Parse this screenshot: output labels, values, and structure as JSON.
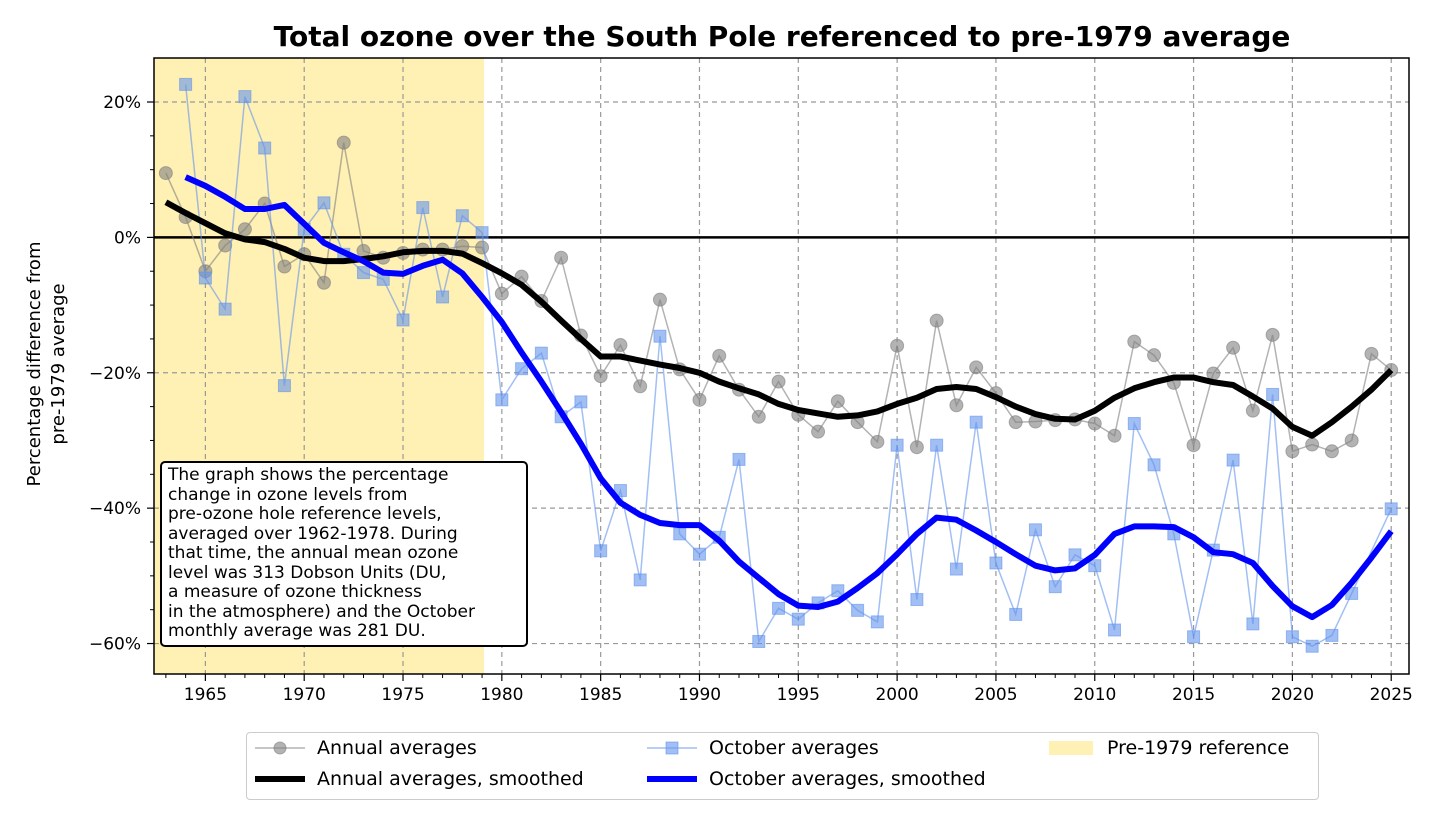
{
  "chart_data": {
    "type": "line",
    "title": "Total ozone over the South Pole referenced to pre-1979 average",
    "xlabel": "",
    "ylabel": "Percentage difference from\npre-1979 average",
    "xlim": [
      1962.4,
      2025.9
    ],
    "ylim": [
      -64.5,
      26.5
    ],
    "x_ticks": [
      1965,
      1970,
      1975,
      1980,
      1985,
      1990,
      1995,
      2000,
      2005,
      2010,
      2015,
      2020,
      2025
    ],
    "y_ticks": [
      20,
      0,
      -20,
      -40,
      -60
    ],
    "y_tick_labels": [
      "20%",
      "0%",
      "−20%",
      "−40%",
      "−60%"
    ],
    "grid": true,
    "reference_span": {
      "label": "Pre-1979 reference",
      "from": 1962.4,
      "to": 1979.1,
      "color": "#fff0b3"
    },
    "series": [
      {
        "name": "Annual averages",
        "style": "circle-thin",
        "color": "#808080",
        "x": [
          1963,
          1964,
          1965,
          1966,
          1967,
          1968,
          1969,
          1970,
          1971,
          1972,
          1973,
          1974,
          1975,
          1976,
          1977,
          1978,
          1979,
          1980,
          1981,
          1982,
          1983,
          1984,
          1985,
          1986,
          1987,
          1988,
          1989,
          1990,
          1991,
          1992,
          1993,
          1994,
          1995,
          1996,
          1997,
          1998,
          1999,
          2000,
          2001,
          2002,
          2003,
          2004,
          2005,
          2006,
          2007,
          2008,
          2009,
          2010,
          2011,
          2012,
          2013,
          2014,
          2015,
          2016,
          2017,
          2018,
          2019,
          2020,
          2021,
          2022,
          2023,
          2024,
          2025
        ],
        "values": [
          9.5,
          3,
          -5,
          -1.2,
          1.2,
          5,
          -4.3,
          -2.5,
          -6.7,
          14,
          -2,
          -3,
          -2.3,
          -1.8,
          -1.8,
          -1.3,
          -1.5,
          -8.3,
          -5.8,
          -9.4,
          -3,
          -14.5,
          -20.5,
          -15.9,
          -22,
          -9.2,
          -19.5,
          -24,
          -17.5,
          -22.5,
          -26.5,
          -21.3,
          -26.2,
          -28.7,
          -24.2,
          -27.3,
          -30.2,
          -16,
          -31,
          -12.3,
          -24.8,
          -19.2,
          -23,
          -27.3,
          -27.2,
          -27,
          -26.9,
          -27.5,
          -29.3,
          -15.4,
          -17.4,
          -21.5,
          -30.7,
          -20.1,
          -16.3,
          -25.6,
          -14.4,
          -31.6,
          -30.6,
          -31.6,
          -30,
          -17.2,
          -19.6
        ]
      },
      {
        "name": "October averages",
        "style": "square-thin",
        "color": "#6495ed",
        "x": [
          1964,
          1965,
          1966,
          1967,
          1968,
          1969,
          1970,
          1971,
          1972,
          1973,
          1974,
          1975,
          1976,
          1977,
          1978,
          1979,
          1980,
          1981,
          1982,
          1983,
          1984,
          1985,
          1986,
          1987,
          1988,
          1989,
          1990,
          1991,
          1992,
          1993,
          1994,
          1995,
          1996,
          1997,
          1998,
          1999,
          2000,
          2001,
          2002,
          2003,
          2004,
          2005,
          2006,
          2007,
          2008,
          2009,
          2010,
          2011,
          2012,
          2013,
          2014,
          2015,
          2016,
          2017,
          2018,
          2019,
          2020,
          2021,
          2022,
          2023,
          2025
        ],
        "values": [
          22.6,
          -6,
          -10.6,
          20.8,
          13.2,
          -21.9,
          1.2,
          5.1,
          -2.5,
          -5.2,
          -6.2,
          -12.2,
          4.4,
          -8.8,
          3.2,
          0.7,
          -24,
          -19.4,
          -17.1,
          -26.5,
          -24.3,
          -46.3,
          -37.4,
          -50.6,
          -14.6,
          -43.8,
          -46.8,
          -44.3,
          -32.8,
          -59.7,
          -54.8,
          -56.4,
          -54,
          -52.2,
          -55.1,
          -56.8,
          -30.7,
          -53.5,
          -30.7,
          -49,
          -27.3,
          -48.1,
          -55.7,
          -43.2,
          -51.6,
          -46.9,
          -48.5,
          -58,
          -27.5,
          -33.6,
          -43.8,
          -59,
          -46.2,
          -32.9,
          -57.1,
          -23.2,
          -59,
          -60.4,
          -58.8,
          -52.6,
          -40.1
        ]
      },
      {
        "name": "Annual averages, smoothed",
        "style": "thick",
        "color": "#000000",
        "x": [
          1963,
          1964,
          1965,
          1966,
          1967,
          1968,
          1969,
          1970,
          1971,
          1972,
          1973,
          1974,
          1975,
          1976,
          1977,
          1978,
          1979,
          1980,
          1981,
          1982,
          1983,
          1984,
          1985,
          1986,
          1987,
          1988,
          1989,
          1990,
          1991,
          1992,
          1993,
          1994,
          1995,
          1996,
          1997,
          1998,
          1999,
          2000,
          2001,
          2002,
          2003,
          2004,
          2005,
          2006,
          2007,
          2008,
          2009,
          2010,
          2011,
          2012,
          2013,
          2014,
          2015,
          2016,
          2017,
          2018,
          2019,
          2020,
          2021,
          2022,
          2023,
          2024,
          2025
        ],
        "values": [
          5.2,
          3.6,
          2.1,
          0.6,
          -0.3,
          -0.7,
          -1.7,
          -3,
          -3.5,
          -3.5,
          -3.2,
          -2.8,
          -2.2,
          -2,
          -2,
          -2.4,
          -3.8,
          -5.3,
          -7,
          -9.5,
          -12.3,
          -15,
          -17.6,
          -17.6,
          -18.2,
          -18.8,
          -19.3,
          -20,
          -21.3,
          -22.3,
          -23.2,
          -24.6,
          -25.5,
          -26,
          -26.5,
          -26.3,
          -25.7,
          -24.6,
          -23.7,
          -22.4,
          -22.1,
          -22.4,
          -23.6,
          -25,
          -26.1,
          -26.8,
          -26.9,
          -25.6,
          -23.7,
          -22.3,
          -21.4,
          -20.7,
          -20.7,
          -21.4,
          -21.8,
          -23.5,
          -25.3,
          -28,
          -29.3,
          -27.3,
          -25,
          -22.5,
          -19.6
        ]
      },
      {
        "name": "October averages, smoothed",
        "style": "thick",
        "color": "#0000ff",
        "x": [
          1964,
          1965,
          1966,
          1967,
          1968,
          1969,
          1970,
          1971,
          1972,
          1973,
          1974,
          1975,
          1976,
          1977,
          1978,
          1979,
          1980,
          1981,
          1982,
          1983,
          1984,
          1985,
          1986,
          1987,
          1988,
          1989,
          1990,
          1991,
          1992,
          1993,
          1994,
          1995,
          1996,
          1997,
          1998,
          1999,
          2000,
          2001,
          2002,
          2003,
          2004,
          2005,
          2006,
          2007,
          2008,
          2009,
          2010,
          2011,
          2012,
          2013,
          2014,
          2015,
          2016,
          2017,
          2018,
          2019,
          2020,
          2021,
          2022,
          2023,
          2024,
          2025
        ],
        "values": [
          8.9,
          7.6,
          6,
          4.2,
          4.2,
          4.8,
          2,
          -0.8,
          -2.2,
          -3.5,
          -5.2,
          -5.4,
          -4.2,
          -3.3,
          -5.3,
          -8.8,
          -12.5,
          -17,
          -21.3,
          -25.8,
          -30.5,
          -35.6,
          -39.2,
          -41,
          -42.2,
          -42.5,
          -42.5,
          -44.8,
          -47.9,
          -50.3,
          -52.7,
          -54.4,
          -54.6,
          -53.8,
          -51.8,
          -49.6,
          -46.8,
          -43.8,
          -41.4,
          -41.7,
          -43.3,
          -45,
          -46.8,
          -48.5,
          -49.2,
          -48.9,
          -46.9,
          -43.8,
          -42.7,
          -42.7,
          -42.8,
          -44.3,
          -46.5,
          -46.8,
          -48.1,
          -51.5,
          -54.5,
          -56.1,
          -54.3,
          -51,
          -47.3,
          -43.4
        ]
      }
    ],
    "legend": {
      "placement": "bottom-center-outside",
      "entries": [
        "Annual averages",
        "October averages",
        "Pre-1979 reference",
        "Annual averages, smoothed",
        "October averages, smoothed"
      ]
    },
    "annotation": "The graph shows the percentage\nchange in ozone levels from\npre-ozone hole reference levels,\naveraged over 1962-1978. During\nthat time, the annual mean ozone\nlevel was 313 Dobson Units (DU,\na measure of ozone thickness\nin the atmosphere) and the October\nmonthly average was 281 DU."
  }
}
